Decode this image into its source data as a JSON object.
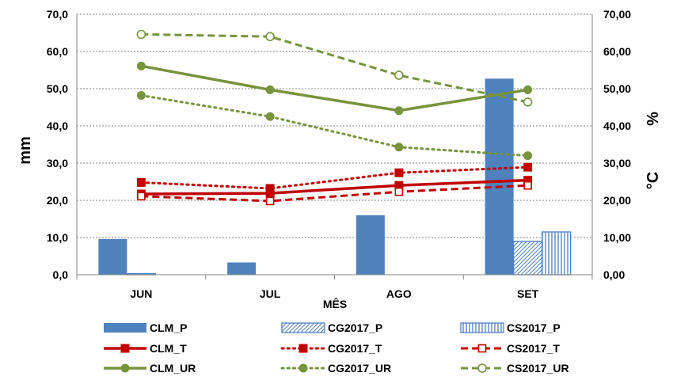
{
  "chart_data": {
    "type": "bar+line",
    "categories": [
      "JUN",
      "JUL",
      "AGO",
      "SET"
    ],
    "xlabel": "MÊS",
    "ylabel_left": "mm",
    "ylabel_right_top": "%",
    "ylabel_right_bottom": "°C",
    "ylim_left": [
      0,
      70
    ],
    "ylim_right": [
      0,
      70
    ],
    "yticks_left": [
      "0,0",
      "10,0",
      "20,0",
      "30,0",
      "40,0",
      "50,0",
      "60,0",
      "70,0"
    ],
    "yticks_right": [
      "0,00",
      "10,00",
      "20,00",
      "30,00",
      "40,00",
      "50,00",
      "60,00",
      "70,00"
    ],
    "grid": true,
    "legend_position": "bottom",
    "bar_series": [
      {
        "name": "CLM_P",
        "values": [
          9.6,
          3.3,
          16.0,
          52.7
        ],
        "color": "#4F81BD",
        "pattern": "solid"
      },
      {
        "name": "CG2017_P",
        "values": [
          0.3,
          0,
          0,
          9.0
        ],
        "color": "#4F81BD",
        "pattern": "diagonal"
      },
      {
        "name": "CS2017_P",
        "values": [
          0,
          0,
          0,
          11.5
        ],
        "color": "#4F81BD",
        "pattern": "vertical"
      }
    ],
    "line_series": [
      {
        "name": "CLM_T",
        "values": [
          21.7,
          21.9,
          24.0,
          25.4
        ],
        "color": "#C00000",
        "dash": "solid",
        "marker": "square"
      },
      {
        "name": "CG2017_T",
        "values": [
          24.8,
          23.2,
          27.4,
          28.9
        ],
        "color": "#C00000",
        "dash": "dotted",
        "marker": "square"
      },
      {
        "name": "CS2017_T",
        "values": [
          21.1,
          19.8,
          22.3,
          24.0
        ],
        "color": "#C00000",
        "dash": "dashed",
        "marker": "square-open"
      },
      {
        "name": "CLM_UR",
        "values": [
          56.1,
          49.7,
          44.1,
          49.7
        ],
        "color": "#77933C",
        "dash": "solid",
        "marker": "circle"
      },
      {
        "name": "CG2017_UR",
        "values": [
          48.2,
          42.5,
          34.3,
          32.0
        ],
        "color": "#77933C",
        "dash": "dotted",
        "marker": "circle"
      },
      {
        "name": "CS2017_UR",
        "values": [
          64.6,
          64.0,
          53.6,
          46.4
        ],
        "color": "#77933C",
        "dash": "dashed",
        "marker": "circle-open"
      }
    ],
    "legend_order": [
      "CLM_P",
      "CG2017_P",
      "CS2017_P",
      "CLM_T",
      "CG2017_T",
      "CS2017_T",
      "CLM_UR",
      "CG2017_UR",
      "CS2017_UR"
    ]
  }
}
